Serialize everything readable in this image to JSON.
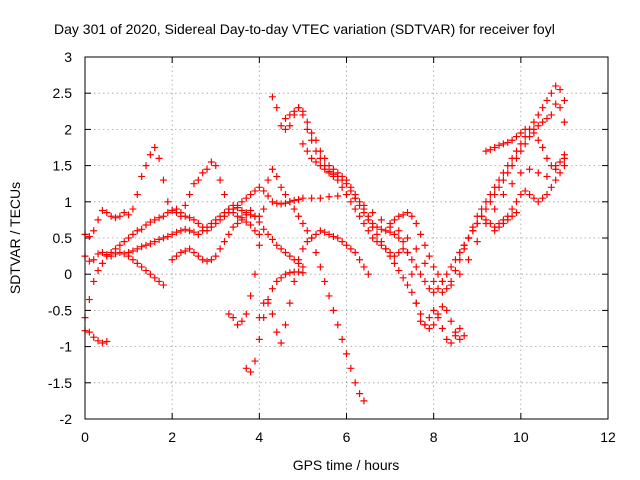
{
  "chart_data": {
    "type": "scatter",
    "title": "Day 301 of 2020, Sidereal Day-to-day VTEC variation (SDTVAR) for receiver foyl",
    "xlabel": "GPS time / hours",
    "ylabel": "SDTVAR / TECUs",
    "xlim": [
      0,
      12
    ],
    "ylim": [
      -2,
      3
    ],
    "xticks": [
      0,
      2,
      4,
      6,
      8,
      10,
      12
    ],
    "yticks": [
      -2,
      -1.5,
      -1,
      -0.5,
      0,
      0.5,
      1,
      1.5,
      2,
      2.5,
      3
    ],
    "xtick_labels": [
      "0",
      "2",
      "4",
      "6",
      "8",
      "10",
      "12"
    ],
    "ytick_labels": [
      "-2",
      "-1.5",
      "-1",
      "-0.5",
      "0",
      "0.5",
      "1",
      "1.5",
      "2",
      "2.5",
      "3"
    ],
    "grid": true,
    "marker": "+",
    "color": "#ff0000",
    "series": [
      {
        "x": [
          0.0,
          0.1,
          0.2,
          0.3,
          0.4,
          0.5
        ],
        "y": [
          -0.78,
          -0.8,
          -0.87,
          -0.92,
          -0.95,
          -0.93
        ]
      },
      {
        "x": [
          0.0,
          0.1,
          0.2,
          0.3,
          0.4,
          0.5,
          0.6,
          0.7,
          0.8,
          0.9,
          1.0,
          1.1,
          1.2,
          1.3,
          1.4,
          1.5,
          1.6,
          1.7,
          1.8,
          1.9,
          2.0,
          2.1,
          2.2,
          2.3,
          2.4,
          2.5,
          2.6,
          2.7,
          2.8,
          2.9,
          3.0,
          3.1,
          3.2,
          3.3,
          3.4,
          3.5,
          3.6,
          3.7,
          3.8,
          3.9,
          4.0,
          4.1,
          4.2,
          4.3,
          4.4,
          4.5,
          4.6,
          4.7,
          4.8,
          4.9,
          5.0
        ],
        "y": [
          0.55,
          0.52,
          0.6,
          0.75,
          0.88,
          0.85,
          0.8,
          0.78,
          0.8,
          0.85,
          0.82,
          0.9,
          1.1,
          1.35,
          1.5,
          1.65,
          1.75,
          1.6,
          1.3,
          1.0,
          0.88,
          0.85,
          0.8,
          0.95,
          1.1,
          1.25,
          1.3,
          1.4,
          1.45,
          1.55,
          1.5,
          1.3,
          1.1,
          0.9,
          0.85,
          0.8,
          0.78,
          0.82,
          0.88,
          0.8,
          0.72,
          0.62,
          0.55,
          0.48,
          0.4,
          0.35,
          0.3,
          0.25,
          0.2,
          0.15,
          0.1
        ]
      },
      {
        "x": [
          0.0,
          0.1,
          0.2,
          0.3,
          0.4,
          0.5,
          0.6,
          0.7,
          0.8,
          0.9,
          1.0,
          1.1,
          1.2,
          1.3,
          1.4,
          1.5,
          1.6,
          1.7,
          1.8
        ],
        "y": [
          0.25,
          0.18,
          0.2,
          0.28,
          0.3,
          0.27,
          0.25,
          0.28,
          0.3,
          0.28,
          0.25,
          0.2,
          0.15,
          0.1,
          0.05,
          0.0,
          -0.05,
          -0.1,
          -0.15
        ]
      },
      {
        "x": [
          0.0,
          0.1,
          0.2,
          0.3,
          0.4,
          0.5,
          0.6,
          0.7,
          0.8,
          0.9,
          1.0,
          1.1,
          1.2,
          1.3,
          1.4,
          1.5,
          1.6,
          1.7,
          1.8,
          1.9,
          2.0,
          2.1,
          2.2,
          2.3,
          2.4,
          2.5,
          2.6,
          2.7,
          2.8,
          2.9,
          3.0,
          3.1,
          3.2,
          3.3,
          3.4,
          3.5,
          3.6,
          3.7,
          3.8,
          3.9,
          4.0,
          4.1,
          4.2,
          4.3,
          4.4,
          4.5,
          4.6,
          4.7,
          4.8,
          4.9,
          5.0,
          5.2,
          5.4,
          5.6,
          5.8,
          6.0,
          6.2,
          6.4,
          6.6,
          6.8,
          7.0,
          7.2,
          7.4,
          7.6,
          7.8,
          8.0,
          8.2,
          8.4,
          8.6,
          8.8,
          9.0,
          9.2,
          9.4,
          9.6,
          9.8,
          10.0,
          10.2,
          10.4,
          10.6,
          10.8,
          11.0
        ],
        "y": [
          -0.6,
          -0.35,
          -0.1,
          0.05,
          0.15,
          0.25,
          0.3,
          0.35,
          0.4,
          0.45,
          0.5,
          0.55,
          0.6,
          0.62,
          0.68,
          0.72,
          0.75,
          0.78,
          0.8,
          0.85,
          0.88,
          0.9,
          0.85,
          0.8,
          0.78,
          0.75,
          0.7,
          0.65,
          0.6,
          0.65,
          0.7,
          0.75,
          0.8,
          0.85,
          0.9,
          0.95,
          1.0,
          1.05,
          1.1,
          1.15,
          1.2,
          1.15,
          1.08,
          1.0,
          0.98,
          0.97,
          0.98,
          1.0,
          1.02,
          1.03,
          1.05,
          1.05,
          1.05,
          1.07,
          1.08,
          1.1,
          1.05,
          0.95,
          0.85,
          0.75,
          0.65,
          0.6,
          0.5,
          0.35,
          0.15,
          -0.1,
          -0.25,
          -0.15,
          0.0,
          0.2,
          0.45,
          0.7,
          0.9,
          1.1,
          1.25,
          1.4,
          1.45,
          1.4,
          1.35,
          1.5,
          1.6
        ]
      },
      {
        "x": [
          1.0,
          1.1,
          1.2,
          1.3,
          1.4,
          1.5,
          1.6,
          1.7,
          1.8,
          1.9,
          2.0,
          2.1,
          2.2,
          2.3,
          2.4,
          2.5,
          2.6,
          2.7,
          2.8,
          2.9,
          3.0,
          3.1,
          3.2,
          3.3,
          3.4,
          3.5,
          3.6,
          3.7,
          3.8,
          3.9,
          4.0
        ],
        "y": [
          0.3,
          0.32,
          0.35,
          0.38,
          0.4,
          0.42,
          0.45,
          0.48,
          0.5,
          0.52,
          0.55,
          0.58,
          0.6,
          0.62,
          0.6,
          0.58,
          0.55,
          0.6,
          0.65,
          0.7,
          0.75,
          0.8,
          0.85,
          0.9,
          0.95,
          0.92,
          0.88,
          0.85,
          0.82,
          0.8,
          0.8
        ]
      },
      {
        "x": [
          2.0,
          2.1,
          2.2,
          2.3,
          2.4,
          2.5,
          2.6,
          2.7,
          2.8,
          2.9,
          3.0,
          3.1,
          3.2,
          3.3,
          3.4,
          3.5,
          3.6,
          3.7,
          3.8,
          3.9,
          4.0
        ],
        "y": [
          0.2,
          0.25,
          0.3,
          0.32,
          0.35,
          0.3,
          0.25,
          0.2,
          0.18,
          0.2,
          0.25,
          0.35,
          0.45,
          0.55,
          0.65,
          0.7,
          0.75,
          0.72,
          0.68,
          0.6,
          0.55
        ]
      },
      {
        "x": [
          3.3,
          3.4,
          3.5,
          3.6,
          3.7,
          3.8,
          3.9,
          4.0,
          4.1,
          4.2,
          4.3,
          4.4,
          4.5,
          4.6,
          4.7,
          4.8,
          4.9,
          5.0,
          5.1,
          5.2,
          5.3,
          5.4,
          5.5,
          5.6,
          5.7,
          5.8,
          5.9,
          6.0,
          6.1,
          6.2,
          6.3,
          6.4
        ],
        "y": [
          -0.55,
          -0.6,
          -0.7,
          -0.65,
          -0.55,
          -0.3,
          0.0,
          0.4,
          0.9,
          1.3,
          1.45,
          1.35,
          1.2,
          1.1,
          1.0,
          0.9,
          0.8,
          0.7,
          0.6,
          0.5,
          0.3,
          0.1,
          -0.1,
          -0.3,
          -0.5,
          -0.7,
          -0.9,
          -1.1,
          -1.3,
          -1.5,
          -1.65,
          -1.75
        ]
      },
      {
        "x": [
          3.7,
          3.8,
          3.9,
          4.0,
          4.1,
          4.2,
          4.3,
          4.4,
          4.5,
          4.6,
          4.7,
          4.8,
          4.9,
          5.0
        ],
        "y": [
          -1.3,
          -1.35,
          -1.2,
          -0.9,
          -0.6,
          -0.4,
          -0.2,
          -0.1,
          -0.05,
          0.0,
          0.02,
          0.03,
          0.03,
          0.02
        ]
      },
      {
        "x": [
          4.0,
          4.1,
          4.2,
          4.3,
          4.4,
          4.5,
          4.6,
          4.7,
          4.8,
          4.9,
          5.0,
          5.1,
          5.2,
          5.3,
          5.4,
          5.5,
          5.6,
          5.7,
          5.8,
          5.9,
          6.0,
          6.1,
          6.2,
          6.3,
          6.4,
          6.5
        ],
        "y": [
          -0.6,
          -0.4,
          -0.35,
          -0.55,
          -0.8,
          -0.95,
          -0.7,
          -0.4,
          -0.1,
          0.2,
          0.35,
          0.45,
          0.5,
          0.55,
          0.6,
          0.58,
          0.55,
          0.52,
          0.5,
          0.45,
          0.4,
          0.35,
          0.3,
          0.2,
          0.1,
          0.0
        ]
      },
      {
        "x": [
          4.3,
          4.4,
          4.5,
          4.6,
          4.7,
          4.8,
          4.9,
          5.0,
          5.1,
          5.2,
          5.3,
          5.4,
          5.5,
          5.6,
          5.7,
          5.8,
          5.9,
          6.0,
          6.1,
          6.2,
          6.3,
          6.4,
          6.5,
          6.6,
          6.7,
          6.8,
          6.9,
          7.0,
          7.1,
          7.2,
          7.3,
          7.4,
          7.5,
          7.6,
          7.7,
          7.8,
          7.9,
          8.0,
          8.1,
          8.2,
          8.3,
          8.4,
          8.5,
          8.6,
          8.7
        ],
        "y": [
          2.45,
          2.3,
          2.05,
          2.0,
          2.05,
          2.2,
          2.3,
          2.25,
          2.1,
          1.95,
          1.85,
          1.7,
          1.6,
          1.5,
          1.45,
          1.4,
          1.35,
          1.3,
          1.2,
          1.1,
          1.0,
          0.9,
          0.8,
          0.7,
          0.65,
          0.62,
          0.6,
          0.58,
          0.55,
          0.5,
          0.45,
          0.3,
          0.0,
          -0.4,
          -0.65,
          -0.7,
          -0.6,
          -0.5,
          -0.6,
          -0.75,
          -0.9,
          -0.95,
          -0.85,
          -0.75,
          -0.85
        ]
      },
      {
        "x": [
          4.6,
          4.7,
          4.8,
          4.9,
          5.0,
          5.1,
          5.2,
          5.3,
          5.4,
          5.5,
          5.6,
          5.7,
          5.8,
          5.9,
          6.0,
          6.1,
          6.2,
          6.3,
          6.4,
          6.5,
          6.6,
          6.7,
          6.8,
          6.9,
          7.0,
          7.1,
          7.2,
          7.3,
          7.4,
          7.5,
          7.6,
          7.7,
          7.8,
          7.9,
          8.0,
          8.1,
          8.2,
          8.3,
          8.4,
          8.5,
          8.6,
          8.7,
          8.8,
          8.9,
          9.0,
          9.1,
          9.2,
          9.3,
          9.4,
          9.5,
          9.6,
          9.7,
          9.8,
          9.9,
          10.0,
          10.1,
          10.2,
          10.3,
          10.4,
          10.5,
          10.6,
          10.7,
          10.8,
          10.9,
          11.0
        ],
        "y": [
          2.15,
          2.2,
          2.25,
          2.3,
          2.2,
          2.0,
          1.85,
          1.7,
          1.6,
          1.5,
          1.4,
          1.35,
          1.3,
          1.2,
          1.1,
          1.0,
          0.9,
          0.8,
          0.7,
          0.6,
          0.5,
          0.45,
          0.4,
          0.35,
          0.3,
          0.25,
          0.3,
          0.35,
          0.3,
          0.2,
          0.1,
          0.0,
          -0.1,
          -0.2,
          -0.25,
          -0.2,
          -0.1,
          0.0,
          0.1,
          0.2,
          0.3,
          0.4,
          0.5,
          0.6,
          0.7,
          0.8,
          0.9,
          1.0,
          1.1,
          1.2,
          1.3,
          1.4,
          1.5,
          1.6,
          1.7,
          1.8,
          1.9,
          2.0,
          2.05,
          2.1,
          2.15,
          2.2,
          2.35,
          2.3,
          2.1
        ]
      },
      {
        "x": [
          5.0,
          5.1,
          5.2,
          5.3,
          5.4,
          5.5,
          5.6,
          5.7,
          5.8,
          5.9,
          6.0,
          6.1,
          6.2,
          6.3,
          6.4,
          6.5,
          6.6,
          6.7,
          6.8,
          6.9,
          7.0,
          7.1,
          7.2,
          7.3,
          7.4,
          7.5,
          7.6,
          7.7,
          7.8,
          7.9,
          8.0,
          8.1,
          8.2,
          8.3,
          8.4,
          8.5,
          8.6
        ],
        "y": [
          1.8,
          1.7,
          1.6,
          1.55,
          1.5,
          1.45,
          1.42,
          1.38,
          1.35,
          1.3,
          1.25,
          1.15,
          1.05,
          0.95,
          0.85,
          0.75,
          0.65,
          0.55,
          0.45,
          0.35,
          0.25,
          0.15,
          0.05,
          -0.05,
          -0.15,
          -0.25,
          -0.4,
          -0.55,
          -0.7,
          -0.75,
          -0.7,
          -0.55,
          -0.45,
          -0.5,
          -0.65,
          -0.8,
          -0.9
        ]
      },
      {
        "x": [
          7.0,
          7.1,
          7.2,
          7.3,
          7.4,
          7.5,
          7.6,
          7.7,
          7.8,
          7.9,
          8.0,
          8.1,
          8.2,
          8.3,
          8.4,
          8.5,
          8.6,
          8.7,
          8.8,
          8.9,
          9.0,
          9.1,
          9.2,
          9.3,
          9.4,
          9.5,
          9.6,
          9.7,
          9.8,
          9.9,
          10.0,
          10.1,
          10.2,
          10.3,
          10.4,
          10.5,
          10.6,
          10.7,
          10.8,
          10.9,
          11.0
        ],
        "y": [
          0.7,
          0.75,
          0.8,
          0.82,
          0.85,
          0.8,
          0.7,
          0.55,
          0.4,
          0.25,
          0.1,
          0.0,
          -0.1,
          -0.2,
          -0.1,
          0.05,
          0.2,
          0.35,
          0.5,
          0.65,
          0.8,
          0.9,
          1.0,
          1.1,
          1.2,
          1.3,
          1.4,
          1.5,
          1.6,
          1.7,
          1.8,
          1.9,
          2.0,
          2.1,
          2.2,
          2.3,
          2.4,
          2.5,
          2.6,
          2.55,
          2.4
        ]
      },
      {
        "x": [
          9.2,
          9.3,
          9.4,
          9.5,
          9.6,
          9.7,
          9.8,
          9.9,
          10.0,
          10.1,
          10.2,
          10.3,
          10.4,
          10.5,
          10.6,
          10.7,
          10.8,
          10.9,
          11.0
        ],
        "y": [
          1.7,
          1.72,
          1.75,
          1.78,
          1.8,
          1.82,
          1.85,
          1.9,
          1.95,
          2.0,
          2.0,
          1.95,
          1.85,
          1.75,
          1.6,
          1.5,
          1.45,
          1.55,
          1.65
        ]
      },
      {
        "x": [
          8.6,
          8.7,
          8.8,
          8.9,
          9.0,
          9.1,
          9.2,
          9.3,
          9.4,
          9.5,
          9.6,
          9.7,
          9.8,
          9.9,
          10.0,
          10.1,
          10.2,
          10.3,
          10.4,
          10.5,
          10.6,
          10.7,
          10.8,
          10.9,
          11.0
        ],
        "y": [
          0.3,
          0.4,
          0.5,
          0.6,
          0.7,
          0.8,
          0.75,
          0.7,
          0.65,
          0.7,
          0.75,
          0.8,
          0.9,
          1.0,
          1.1,
          1.15,
          1.1,
          1.05,
          1.0,
          1.05,
          1.1,
          1.2,
          1.3,
          1.4,
          1.5
        ]
      },
      {
        "x": [
          9.4,
          9.5,
          9.6,
          9.7,
          9.8,
          9.9
        ],
        "y": [
          0.6,
          0.65,
          0.7,
          0.75,
          0.8,
          0.85
        ]
      }
    ]
  }
}
